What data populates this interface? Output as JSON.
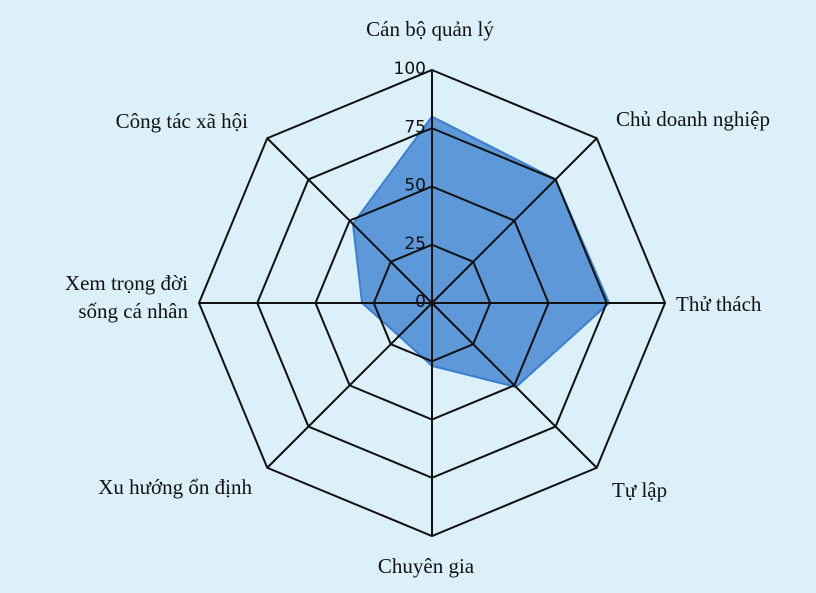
{
  "chart_data": {
    "type": "radar",
    "title": "",
    "categories": [
      "Cán bộ quản lý",
      "Chủ doanh nghiệp",
      "Thử thách",
      "Tự lập",
      "Chuyên gia",
      "Xu hướng ổn định",
      "Xem trọng đời sống cá nhân",
      "Công tác xã hội"
    ],
    "category_label_lines": [
      [
        "Cán bộ quản lý"
      ],
      [
        "Chủ doanh nghiệp"
      ],
      [
        "Thử thách"
      ],
      [
        "Tự lập"
      ],
      [
        "Chuyên gia"
      ],
      [
        "Xu hướng ổn định"
      ],
      [
        "Xem trọng đời",
        "sống cá nhân"
      ],
      [
        "Công tác xã hội"
      ]
    ],
    "series": [
      {
        "values": [
          80,
          75,
          76,
          51,
          27,
          20,
          30,
          48
        ],
        "color": "#3a7fd0"
      }
    ],
    "rlim": [
      0,
      100
    ],
    "ticks": [
      0,
      25,
      50,
      75,
      100
    ],
    "tick_labels": [
      "0",
      "25",
      "50",
      "75",
      "100"
    ],
    "grid_color": "#111111",
    "grid": true,
    "legend": "none"
  }
}
